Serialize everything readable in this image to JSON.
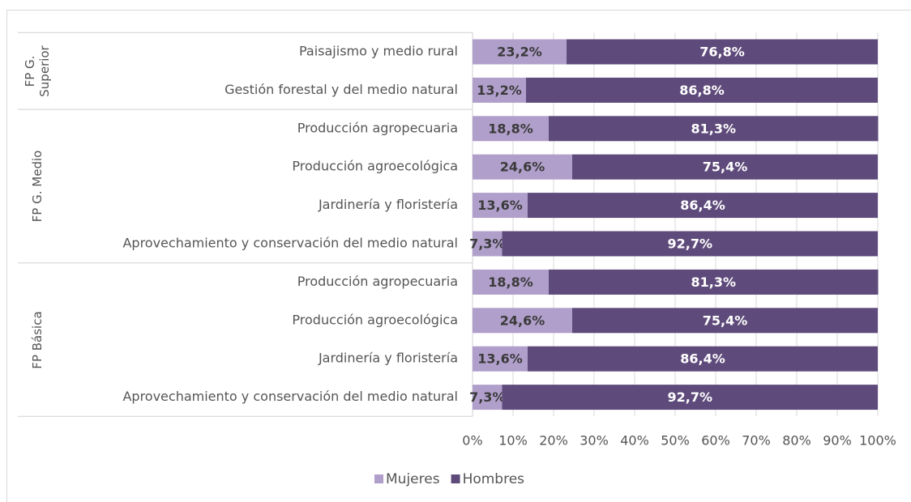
{
  "chart_data": {
    "type": "bar",
    "orientation": "horizontal",
    "stacked": true,
    "groups": [
      {
        "name": "FP G. Superior",
        "categories": [
          "Paisajismo y medio rural",
          "Gestión forestal y del medio natural"
        ]
      },
      {
        "name": "FP G. Medio",
        "categories": [
          "Producción agropecuaria",
          "Producción agroecológica",
          "Jardinería y floristería",
          "Aprovechamiento y conservación del medio natural"
        ]
      },
      {
        "name": "FP Básica",
        "categories": [
          "Producción agropecuaria",
          "Producción agroecológica",
          "Jardinería y floristería",
          "Aprovechamiento y conservación del medio natural"
        ]
      }
    ],
    "series": [
      {
        "name": "Mujeres",
        "color": "#b09fcb",
        "label_color": "#3a3a3a",
        "values": [
          23.2,
          13.2,
          18.8,
          24.6,
          13.6,
          7.3,
          18.8,
          24.6,
          13.6,
          7.3
        ],
        "value_labels": [
          "23,2%",
          "13,2%",
          "18,8%",
          "24,6%",
          "13,6%",
          "7,3%",
          "18,8%",
          "24,6%",
          "13,6%",
          "7,3%"
        ]
      },
      {
        "name": "Hombres",
        "color": "#5f4b7b",
        "label_color": "#ffffff",
        "values": [
          76.8,
          86.8,
          81.3,
          75.4,
          86.4,
          92.7,
          81.3,
          75.4,
          86.4,
          92.7
        ],
        "value_labels": [
          "76,8%",
          "86,8%",
          "81,3%",
          "75,4%",
          "86,4%",
          "92,7%",
          "81,3%",
          "75,4%",
          "86,4%",
          "92,7%"
        ]
      }
    ],
    "xlim": [
      0,
      100
    ],
    "xticks": [
      {
        "value": 0,
        "label": "0%"
      },
      {
        "value": 10,
        "label": "10%"
      },
      {
        "value": 20,
        "label": "20%"
      },
      {
        "value": 30,
        "label": "30%"
      },
      {
        "value": 40,
        "label": "40%"
      },
      {
        "value": 50,
        "label": "50%"
      },
      {
        "value": 60,
        "label": "60%"
      },
      {
        "value": 70,
        "label": "70%"
      },
      {
        "value": 80,
        "label": "80%"
      },
      {
        "value": 90,
        "label": "90%"
      },
      {
        "value": 100,
        "label": "100%"
      }
    ],
    "grid": true,
    "legend": "bottom"
  }
}
